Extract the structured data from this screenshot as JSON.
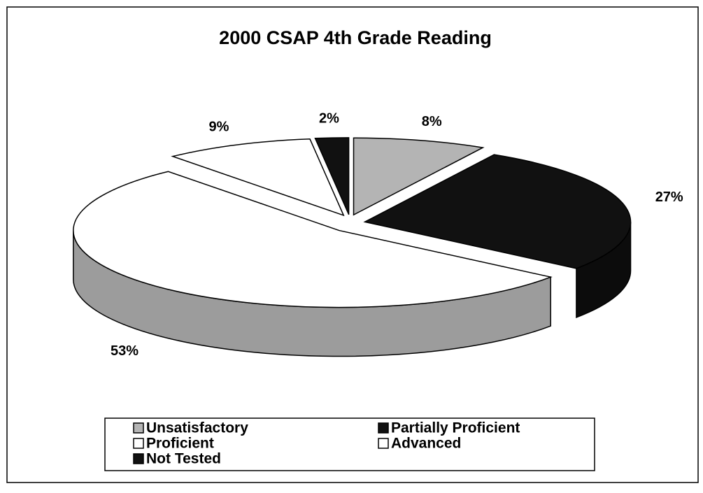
{
  "chart_data": {
    "type": "pie3d",
    "title": "2000 CSAP 4th Grade Reading",
    "categories": [
      "Unsatisfactory",
      "Partially Proficient",
      "Proficient",
      "Advanced",
      "Not Tested"
    ],
    "values": [
      8,
      27,
      53,
      9,
      2
    ],
    "value_labels": [
      "8%",
      "27%",
      "53%",
      "9%",
      "2%"
    ],
    "colors": [
      "#b4b4b4",
      "#111111",
      "#ffffff",
      "#ffffff",
      "#111111"
    ],
    "legend": "bottom"
  }
}
